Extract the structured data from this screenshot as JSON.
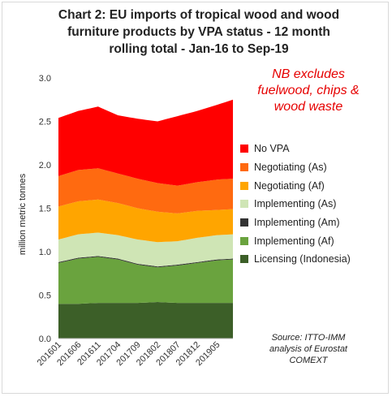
{
  "title_lines": [
    "Chart 2: EU imports of tropical wood and wood",
    "furniture products by VPA status - 12 month",
    "rolling total - Jan-16 to Sep-19"
  ],
  "note_lines": [
    "NB excludes",
    "fuelwood, chips &",
    "wood waste"
  ],
  "source_lines": [
    "Source: ITTO-IMM",
    "analysis of Eurostat",
    "COMEXT"
  ],
  "colors": {
    "No VPA": "#ff0000",
    "Negotiating (As)": "#ff6a10",
    "Negotiating (Af)": "#ffa500",
    "Implementing (As)": "#cfe5b5",
    "Implementing (Am)": "#333333",
    "Implementing (Af)": "#6aa33e",
    "Licensing (Indonesia)": "#3c5f28"
  },
  "chart_data": {
    "type": "area",
    "stacked": true,
    "ylabel": "million metric tonnes",
    "ylim": [
      0,
      3.0
    ],
    "yticks": [
      "0.0",
      "0.5",
      "1.0",
      "1.5",
      "2.0",
      "2.5",
      "3.0"
    ],
    "x": [
      "201601",
      "201602",
      "201603",
      "201604",
      "201605",
      "201606",
      "201607",
      "201608",
      "201609",
      "201610",
      "201611",
      "201612",
      "201701",
      "201702",
      "201703",
      "201704",
      "201705",
      "201706",
      "201707",
      "201708",
      "201709",
      "201710",
      "201711",
      "201712",
      "201801",
      "201802",
      "201803",
      "201804",
      "201805",
      "201806",
      "201807",
      "201808",
      "201809",
      "201810",
      "201811",
      "201812",
      "201901",
      "201902",
      "201903",
      "201904",
      "201905",
      "201906",
      "201907",
      "201908",
      "201909"
    ],
    "xtick_labels": [
      "201601",
      "201606",
      "201611",
      "201704",
      "201709",
      "201802",
      "201807",
      "201812",
      "201905"
    ],
    "legend_position": "right",
    "series": [
      {
        "name": "Licensing (Indonesia)",
        "anchors": [
          [
            0,
            0.4
          ],
          [
            5,
            0.4
          ],
          [
            10,
            0.41
          ],
          [
            15,
            0.41
          ],
          [
            20,
            0.41
          ],
          [
            25,
            0.42
          ],
          [
            30,
            0.41
          ],
          [
            35,
            0.41
          ],
          [
            40,
            0.41
          ],
          [
            44,
            0.41
          ]
        ]
      },
      {
        "name": "Implementing (Af)",
        "anchors": [
          [
            0,
            0.47
          ],
          [
            5,
            0.52
          ],
          [
            10,
            0.53
          ],
          [
            15,
            0.5
          ],
          [
            20,
            0.44
          ],
          [
            25,
            0.4
          ],
          [
            30,
            0.43
          ],
          [
            35,
            0.46
          ],
          [
            40,
            0.49
          ],
          [
            44,
            0.5
          ]
        ]
      },
      {
        "name": "Implementing (Am)",
        "anchors": [
          [
            0,
            0.01
          ],
          [
            44,
            0.01
          ]
        ]
      },
      {
        "name": "Implementing (As)",
        "anchors": [
          [
            0,
            0.26
          ],
          [
            5,
            0.27
          ],
          [
            10,
            0.27
          ],
          [
            15,
            0.27
          ],
          [
            20,
            0.28
          ],
          [
            25,
            0.28
          ],
          [
            30,
            0.27
          ],
          [
            35,
            0.28
          ],
          [
            40,
            0.28
          ],
          [
            44,
            0.28
          ]
        ]
      },
      {
        "name": "Negotiating (Af)",
        "anchors": [
          [
            0,
            0.38
          ],
          [
            5,
            0.38
          ],
          [
            10,
            0.38
          ],
          [
            15,
            0.37
          ],
          [
            20,
            0.36
          ],
          [
            25,
            0.35
          ],
          [
            30,
            0.32
          ],
          [
            35,
            0.31
          ],
          [
            40,
            0.29
          ],
          [
            44,
            0.29
          ]
        ]
      },
      {
        "name": "Negotiating (As)",
        "anchors": [
          [
            0,
            0.35
          ],
          [
            5,
            0.36
          ],
          [
            10,
            0.36
          ],
          [
            15,
            0.34
          ],
          [
            20,
            0.34
          ],
          [
            25,
            0.33
          ],
          [
            30,
            0.32
          ],
          [
            35,
            0.33
          ],
          [
            40,
            0.35
          ],
          [
            44,
            0.35
          ]
        ]
      },
      {
        "name": "No VPA",
        "anchors": [
          [
            0,
            0.67
          ],
          [
            5,
            0.68
          ],
          [
            10,
            0.71
          ],
          [
            15,
            0.67
          ],
          [
            20,
            0.69
          ],
          [
            25,
            0.71
          ],
          [
            30,
            0.8
          ],
          [
            35,
            0.82
          ],
          [
            40,
            0.86
          ],
          [
            44,
            0.91
          ]
        ]
      }
    ]
  }
}
